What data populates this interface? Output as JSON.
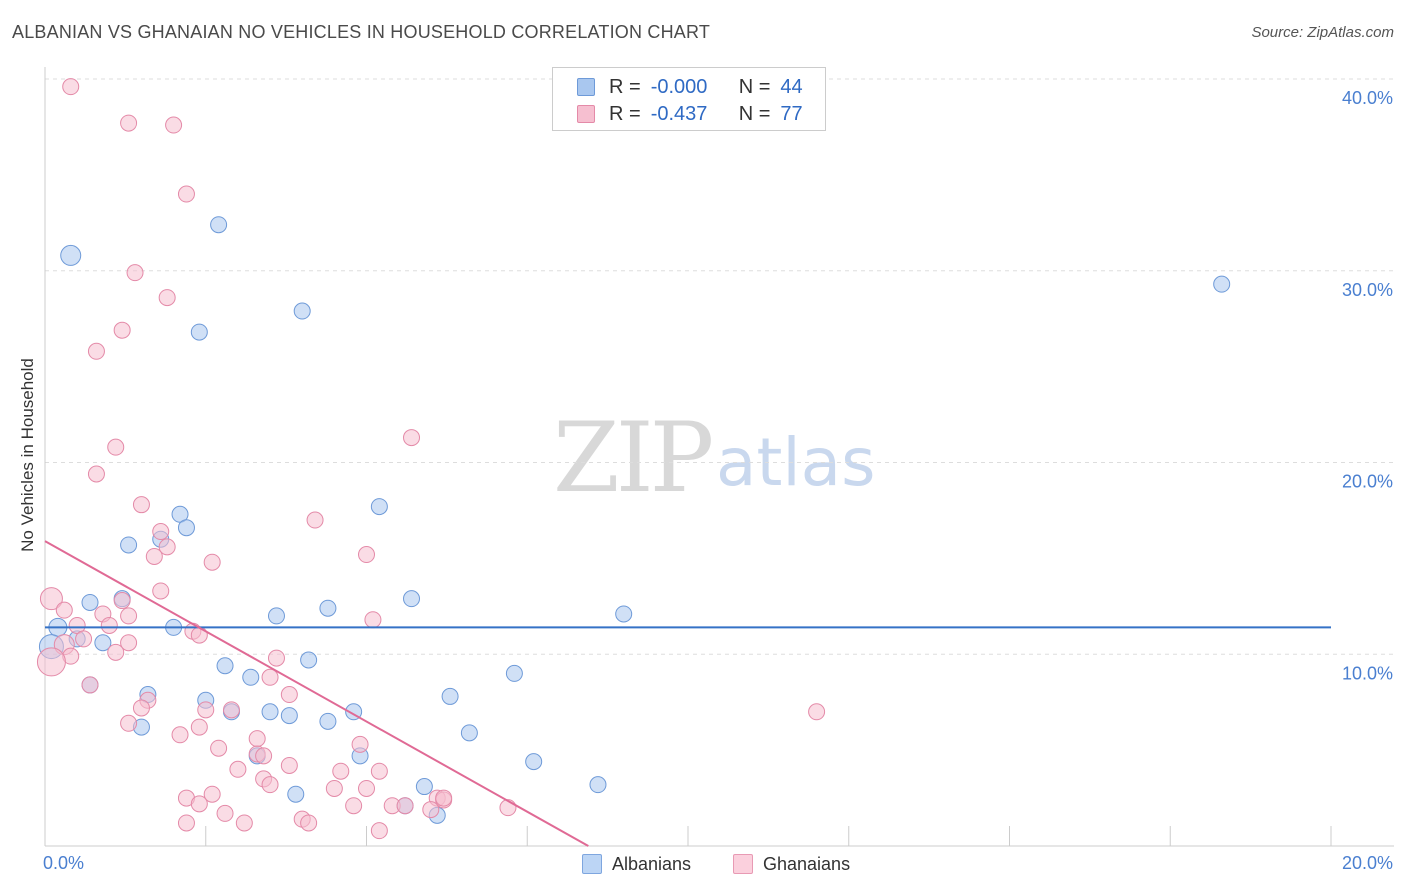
{
  "header": {
    "title": "ALBANIAN VS GHANAIAN NO VEHICLES IN HOUSEHOLD CORRELATION CHART",
    "source": "Source: ZipAtlas.com"
  },
  "watermark": {
    "zip": "ZIP",
    "atlas": "atlas"
  },
  "legend": {
    "rows": [
      {
        "r_label": "R =",
        "r_value": "-0.000",
        "n_label": "N =",
        "n_value": "44",
        "fill": "#a9c7ef",
        "stroke": "#6e9ad8"
      },
      {
        "r_label": "R =",
        "r_value": "-0.437",
        "n_label": "N =",
        "n_value": "77",
        "fill": "#f6bfd0",
        "stroke": "#e48aa8"
      }
    ]
  },
  "bottom_legend": [
    {
      "label": "Albanians",
      "fill": "#bcd5f5",
      "stroke": "#7ea6df"
    },
    {
      "label": "Ghanaians",
      "fill": "#fbd0dd",
      "stroke": "#e89ab4"
    }
  ],
  "chart_data": {
    "type": "scatter",
    "title": "ALBANIAN VS GHANAIAN NO VEHICLES IN HOUSEHOLD CORRELATION CHART",
    "xlabel": "",
    "ylabel": "No Vehicles in Household",
    "xlim": [
      0,
      20
    ],
    "ylim": [
      0,
      40
    ],
    "x_tick_labels": [
      "0.0%",
      "20.0%"
    ],
    "y_ticks": [
      10,
      20,
      30,
      40
    ],
    "y_tick_labels": [
      "10.0%",
      "20.0%",
      "30.0%",
      "40.0%"
    ],
    "grid": true,
    "series": [
      {
        "name": "Albanians",
        "color": "#6e9ad8",
        "fill": "#a9c7ef",
        "trend": {
          "x": [
            0,
            20
          ],
          "y": [
            11.4,
            11.4
          ],
          "color": "#3572c6"
        },
        "points": [
          [
            0.4,
            30.8,
            10
          ],
          [
            2.7,
            32.4,
            8
          ],
          [
            4.0,
            27.9,
            8
          ],
          [
            2.4,
            26.8,
            8
          ],
          [
            18.3,
            29.3,
            8
          ],
          [
            5.2,
            17.7,
            8
          ],
          [
            2.1,
            17.3,
            8
          ],
          [
            2.2,
            16.6,
            8
          ],
          [
            1.3,
            15.7,
            8
          ],
          [
            1.8,
            16.0,
            8
          ],
          [
            9.0,
            12.1,
            8
          ],
          [
            5.7,
            12.9,
            8
          ],
          [
            0.7,
            12.7,
            8
          ],
          [
            1.2,
            12.9,
            8
          ],
          [
            0.2,
            11.4,
            9
          ],
          [
            2.0,
            11.4,
            8
          ],
          [
            3.6,
            12.0,
            8
          ],
          [
            4.4,
            12.4,
            8
          ],
          [
            0.5,
            10.8,
            8
          ],
          [
            0.9,
            10.6,
            8
          ],
          [
            0.1,
            10.4,
            12
          ],
          [
            4.1,
            9.7,
            8
          ],
          [
            2.8,
            9.4,
            8
          ],
          [
            3.2,
            8.8,
            8
          ],
          [
            7.3,
            9.0,
            8
          ],
          [
            0.7,
            8.4,
            8
          ],
          [
            1.6,
            7.9,
            8
          ],
          [
            2.5,
            7.6,
            8
          ],
          [
            6.3,
            7.8,
            8
          ],
          [
            2.9,
            7.0,
            8
          ],
          [
            3.5,
            7.0,
            8
          ],
          [
            3.8,
            6.8,
            8
          ],
          [
            4.8,
            7.0,
            8
          ],
          [
            4.4,
            6.5,
            8
          ],
          [
            1.5,
            6.2,
            8
          ],
          [
            6.6,
            5.9,
            8
          ],
          [
            3.3,
            4.7,
            8
          ],
          [
            4.9,
            4.7,
            8
          ],
          [
            7.6,
            4.4,
            8
          ],
          [
            8.6,
            3.2,
            8
          ],
          [
            3.9,
            2.7,
            8
          ],
          [
            5.9,
            3.1,
            8
          ],
          [
            5.6,
            2.1,
            8
          ],
          [
            6.1,
            1.6,
            8
          ]
        ]
      },
      {
        "name": "Ghanaians",
        "color": "#e48aa8",
        "fill": "#f6bfd0",
        "trend": {
          "x": [
            0,
            8.45
          ],
          "y": [
            15.9,
            0
          ],
          "color": "#e06a95"
        },
        "points": [
          [
            0.4,
            39.6,
            8
          ],
          [
            1.3,
            37.7,
            8
          ],
          [
            2.0,
            37.6,
            8
          ],
          [
            2.2,
            34.0,
            8
          ],
          [
            1.4,
            29.9,
            8
          ],
          [
            1.9,
            28.6,
            8
          ],
          [
            1.2,
            26.9,
            8
          ],
          [
            0.8,
            25.8,
            8
          ],
          [
            5.7,
            21.3,
            8
          ],
          [
            1.1,
            20.8,
            8
          ],
          [
            0.8,
            19.4,
            8
          ],
          [
            1.5,
            17.8,
            8
          ],
          [
            4.2,
            17.0,
            8
          ],
          [
            1.8,
            16.4,
            8
          ],
          [
            1.9,
            15.6,
            8
          ],
          [
            1.7,
            15.1,
            8
          ],
          [
            5.0,
            15.2,
            8
          ],
          [
            2.6,
            14.8,
            8
          ],
          [
            1.8,
            13.3,
            8
          ],
          [
            0.1,
            12.9,
            11
          ],
          [
            0.3,
            12.3,
            8
          ],
          [
            0.9,
            12.1,
            8
          ],
          [
            1.2,
            12.8,
            8
          ],
          [
            1.3,
            12.0,
            8
          ],
          [
            5.1,
            11.8,
            8
          ],
          [
            0.5,
            11.5,
            8
          ],
          [
            1.0,
            11.5,
            8
          ],
          [
            2.3,
            11.2,
            8
          ],
          [
            2.4,
            11.0,
            8
          ],
          [
            0.3,
            10.5,
            10
          ],
          [
            0.6,
            10.8,
            8
          ],
          [
            1.3,
            10.6,
            8
          ],
          [
            1.1,
            10.1,
            8
          ],
          [
            0.4,
            9.9,
            8
          ],
          [
            0.1,
            9.6,
            14
          ],
          [
            3.6,
            9.8,
            8
          ],
          [
            3.5,
            8.8,
            8
          ],
          [
            0.7,
            8.4,
            8
          ],
          [
            3.8,
            7.9,
            8
          ],
          [
            1.6,
            7.6,
            8
          ],
          [
            2.5,
            7.1,
            8
          ],
          [
            2.9,
            7.1,
            8
          ],
          [
            1.5,
            7.2,
            8
          ],
          [
            12.0,
            7.0,
            8
          ],
          [
            1.3,
            6.4,
            8
          ],
          [
            2.4,
            6.2,
            8
          ],
          [
            2.1,
            5.8,
            8
          ],
          [
            3.3,
            5.6,
            8
          ],
          [
            4.9,
            5.3,
            8
          ],
          [
            2.7,
            5.1,
            8
          ],
          [
            3.3,
            4.8,
            8
          ],
          [
            3.8,
            4.2,
            8
          ],
          [
            3.0,
            4.0,
            8
          ],
          [
            4.6,
            3.9,
            8
          ],
          [
            5.2,
            3.9,
            8
          ],
          [
            3.4,
            3.5,
            8
          ],
          [
            3.5,
            3.2,
            8
          ],
          [
            4.5,
            3.0,
            8
          ],
          [
            5.0,
            3.0,
            8
          ],
          [
            2.6,
            2.7,
            8
          ],
          [
            2.2,
            2.5,
            8
          ],
          [
            6.1,
            2.5,
            8
          ],
          [
            6.2,
            2.4,
            8
          ],
          [
            2.4,
            2.2,
            8
          ],
          [
            4.8,
            2.1,
            8
          ],
          [
            5.4,
            2.1,
            8
          ],
          [
            5.6,
            2.1,
            8
          ],
          [
            7.2,
            2.0,
            8
          ],
          [
            6.0,
            1.9,
            8
          ],
          [
            2.8,
            1.7,
            8
          ],
          [
            4.0,
            1.4,
            8
          ],
          [
            4.1,
            1.2,
            8
          ],
          [
            3.1,
            1.2,
            8
          ],
          [
            5.2,
            0.8,
            8
          ],
          [
            6.2,
            2.5,
            8
          ],
          [
            3.4,
            4.7,
            8
          ],
          [
            2.2,
            1.2,
            8
          ]
        ]
      }
    ]
  }
}
